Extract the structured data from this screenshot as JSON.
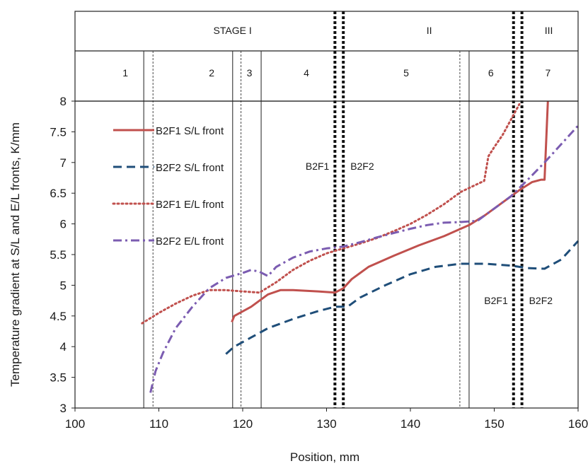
{
  "chart_data": {
    "type": "line",
    "title": "",
    "xlabel": "Position, mm",
    "ylabel": "Temperature gradient at S/L and E/L fronts, K/mm",
    "xlim": [
      100,
      160
    ],
    "ylim": [
      3,
      8
    ],
    "xticks": [
      "100",
      "110",
      "120",
      "130",
      "140",
      "150",
      "160"
    ],
    "yticks": [
      "3",
      "3.5",
      "4",
      "4.5",
      "5",
      "5.5",
      "6",
      "6.5",
      "7",
      "7.5",
      "8"
    ],
    "grid": false,
    "legend_position": "top-left",
    "stage_header": {
      "stages": [
        {
          "label": "STAGE I",
          "from": 100,
          "to": 131.5
        },
        {
          "label": "II",
          "from": 131.5,
          "to": 153
        },
        {
          "label": "III",
          "from": 153,
          "to": 160
        }
      ],
      "zones": [
        {
          "label": "1",
          "center": 106
        },
        {
          "label": "2",
          "center": 116.3
        },
        {
          "label": "3",
          "center": 120.8
        },
        {
          "label": "4",
          "center": 127.6
        },
        {
          "label": "5",
          "center": 139.5
        },
        {
          "label": "6",
          "center": 149.6
        },
        {
          "label": "7",
          "center": 156.4
        }
      ]
    },
    "boundaries": [
      {
        "x": 108.2,
        "style": "solid"
      },
      {
        "x": 109.3,
        "style": "dashed"
      },
      {
        "x": 118.8,
        "style": "solid"
      },
      {
        "x": 119.8,
        "style": "dashed"
      },
      {
        "x": 122.2,
        "style": "solid"
      },
      {
        "x": 145.9,
        "style": "dashed"
      },
      {
        "x": 147.0,
        "style": "solid"
      }
    ],
    "transitions": [
      {
        "x": 131.0,
        "label": "B2F1"
      },
      {
        "x": 132.0,
        "label": "B2F2"
      },
      {
        "x": 152.3,
        "label": "B2F1"
      },
      {
        "x": 153.3,
        "label": "B2F2"
      }
    ],
    "series": [
      {
        "name": "B2F1 S/L front",
        "color": "#c0504d",
        "dash": "solid",
        "points": [
          [
            118.7,
            4.4
          ],
          [
            119.0,
            4.5
          ],
          [
            121,
            4.65
          ],
          [
            123,
            4.85
          ],
          [
            124.5,
            4.92
          ],
          [
            126,
            4.92
          ],
          [
            129,
            4.9
          ],
          [
            131,
            4.88
          ],
          [
            132,
            4.95
          ],
          [
            133,
            5.1
          ],
          [
            135,
            5.3
          ],
          [
            138,
            5.48
          ],
          [
            141,
            5.65
          ],
          [
            144,
            5.8
          ],
          [
            147,
            5.98
          ],
          [
            149,
            6.15
          ],
          [
            151,
            6.35
          ],
          [
            153,
            6.55
          ],
          [
            154.5,
            6.68
          ],
          [
            155.6,
            6.72
          ],
          [
            156.0,
            6.72
          ],
          [
            156.4,
            8.0
          ]
        ]
      },
      {
        "name": "B2F2 S/L front",
        "color": "#1f4e79",
        "dash": "dashed",
        "points": [
          [
            118.0,
            3.88
          ],
          [
            119,
            4.0
          ],
          [
            121,
            4.15
          ],
          [
            123,
            4.3
          ],
          [
            126,
            4.45
          ],
          [
            129,
            4.58
          ],
          [
            131,
            4.65
          ],
          [
            132.5,
            4.65
          ],
          [
            134,
            4.8
          ],
          [
            137,
            5.0
          ],
          [
            140,
            5.18
          ],
          [
            143,
            5.3
          ],
          [
            146,
            5.35
          ],
          [
            149,
            5.35
          ],
          [
            152,
            5.32
          ],
          [
            154,
            5.28
          ],
          [
            156,
            5.27
          ],
          [
            158,
            5.42
          ],
          [
            160,
            5.72
          ]
        ]
      },
      {
        "name": "B2F1 E/L front",
        "color": "#c0504d",
        "dash": "dotted",
        "points": [
          [
            108.0,
            4.38
          ],
          [
            110,
            4.55
          ],
          [
            112,
            4.7
          ],
          [
            114,
            4.83
          ],
          [
            116,
            4.92
          ],
          [
            118,
            4.92
          ],
          [
            120,
            4.9
          ],
          [
            122,
            4.88
          ],
          [
            124,
            5.05
          ],
          [
            126,
            5.25
          ],
          [
            128,
            5.4
          ],
          [
            130,
            5.52
          ],
          [
            132,
            5.6
          ],
          [
            134,
            5.68
          ],
          [
            136,
            5.77
          ],
          [
            138,
            5.88
          ],
          [
            140,
            6.0
          ],
          [
            142,
            6.15
          ],
          [
            144,
            6.32
          ],
          [
            146,
            6.52
          ],
          [
            148,
            6.65
          ],
          [
            148.8,
            6.7
          ],
          [
            149.3,
            7.1
          ],
          [
            150,
            7.25
          ],
          [
            151,
            7.45
          ],
          [
            152,
            7.7
          ],
          [
            153,
            7.95
          ]
        ]
      },
      {
        "name": "B2F2 E/L front",
        "color": "#7b5cb1",
        "dash": "dashdot",
        "points": [
          [
            109.0,
            3.25
          ],
          [
            109.6,
            3.6
          ],
          [
            110.5,
            3.9
          ],
          [
            112,
            4.3
          ],
          [
            114,
            4.65
          ],
          [
            116,
            4.95
          ],
          [
            118,
            5.12
          ],
          [
            120,
            5.2
          ],
          [
            121,
            5.25
          ],
          [
            122,
            5.22
          ],
          [
            123,
            5.15
          ],
          [
            124,
            5.3
          ],
          [
            126,
            5.45
          ],
          [
            128,
            5.55
          ],
          [
            130,
            5.6
          ],
          [
            132,
            5.63
          ],
          [
            134,
            5.7
          ],
          [
            136,
            5.78
          ],
          [
            138,
            5.85
          ],
          [
            140,
            5.92
          ],
          [
            142,
            5.98
          ],
          [
            144,
            6.02
          ],
          [
            146,
            6.03
          ],
          [
            148,
            6.05
          ],
          [
            150,
            6.25
          ],
          [
            152,
            6.45
          ],
          [
            154,
            6.72
          ],
          [
            156,
            7.0
          ],
          [
            158,
            7.3
          ],
          [
            160,
            7.6
          ]
        ]
      }
    ]
  }
}
